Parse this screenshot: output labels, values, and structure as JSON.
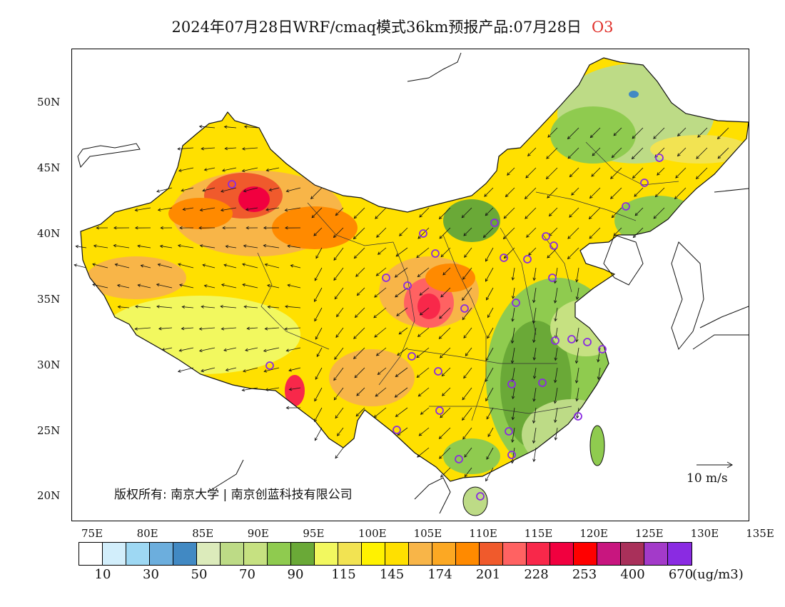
{
  "title": {
    "main": "2024年07月28日WRF/cmaq模式36km预报产品:07月28日",
    "species": "O3"
  },
  "axes": {
    "lon_labels": [
      "75E",
      "80E",
      "85E",
      "90E",
      "95E",
      "100E",
      "105E",
      "110E",
      "115E",
      "120E",
      "125E",
      "130E",
      "135E"
    ],
    "lat_labels": [
      "50N",
      "45N",
      "40N",
      "35N",
      "30N",
      "25N",
      "20N"
    ]
  },
  "copyright": "版权所有: 南京大学 | 南京创蓝科技有限公司",
  "wind_reference": "10 m/s",
  "colorbar": {
    "colors": [
      "#ffffff",
      "#d2eefb",
      "#9ed8f3",
      "#6caedd",
      "#4189c3",
      "#dcebbb",
      "#bddb86",
      "#c6e181",
      "#8fcb4f",
      "#6aa937",
      "#f2f85f",
      "#f2e352",
      "#fff200",
      "#ffe000",
      "#f8b548",
      "#fca823",
      "#ff8a00",
      "#f05a2c",
      "#ff6262",
      "#f8284a",
      "#f1003f",
      "#ff0000",
      "#c8167f",
      "#a9305a",
      "#a33ac9",
      "#8a2be2"
    ],
    "labels": [
      "10",
      "30",
      "50",
      "70",
      "90",
      "115",
      "145",
      "174",
      "201",
      "228",
      "253",
      "400",
      "670"
    ],
    "unit": "(ug/m3)"
  }
}
